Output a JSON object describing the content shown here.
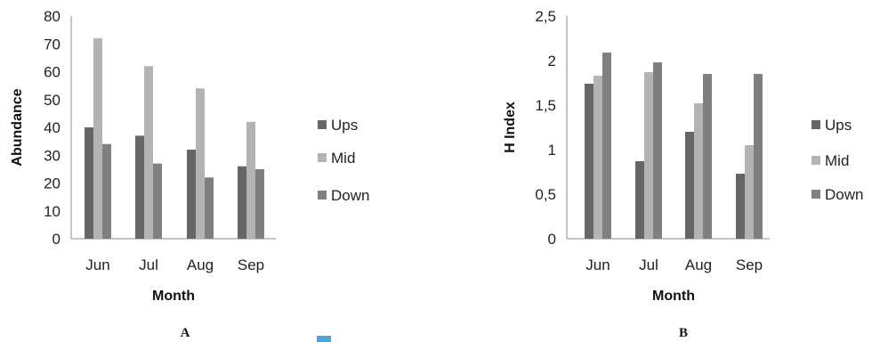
{
  "chart_data": [
    {
      "type": "bar",
      "panel_label": "A",
      "categories": [
        "Jun",
        "Jul",
        "Aug",
        "Sep"
      ],
      "series": [
        {
          "name": "Ups",
          "values": [
            40,
            37,
            32,
            26
          ],
          "color": "#666666"
        },
        {
          "name": "Mid",
          "values": [
            72,
            62,
            54,
            42
          ],
          "color": "#b3b3b3"
        },
        {
          "name": "Down",
          "values": [
            34,
            27,
            22,
            25
          ],
          "color": "#7f7f7f"
        }
      ],
      "xlabel": "Month",
      "ylabel": "Abundance",
      "ylim": [
        0,
        80
      ],
      "yticks": [
        "0",
        "10",
        "20",
        "30",
        "40",
        "50",
        "60",
        "70",
        "80"
      ],
      "ytick_values": [
        0,
        10,
        20,
        30,
        40,
        50,
        60,
        70,
        80
      ],
      "grid": false,
      "legend": "right"
    },
    {
      "type": "bar",
      "panel_label": "B",
      "categories": [
        "Jun",
        "Jul",
        "Aug",
        "Sep"
      ],
      "series": [
        {
          "name": "Ups",
          "values": [
            1.74,
            0.87,
            1.2,
            0.73
          ],
          "color": "#666666"
        },
        {
          "name": "Mid",
          "values": [
            1.83,
            1.87,
            1.52,
            1.05
          ],
          "color": "#b3b3b3"
        },
        {
          "name": "Down",
          "values": [
            2.09,
            1.98,
            1.85,
            1.85
          ],
          "color": "#7f7f7f"
        }
      ],
      "xlabel": "Month",
      "ylabel": "H Index",
      "ylim": [
        0,
        2.5
      ],
      "yticks": [
        "0",
        "0,5",
        "1",
        "1,5",
        "2",
        "2,5"
      ],
      "ytick_values": [
        0,
        0.5,
        1,
        1.5,
        2,
        2.5
      ],
      "grid": false,
      "legend": "right"
    }
  ]
}
